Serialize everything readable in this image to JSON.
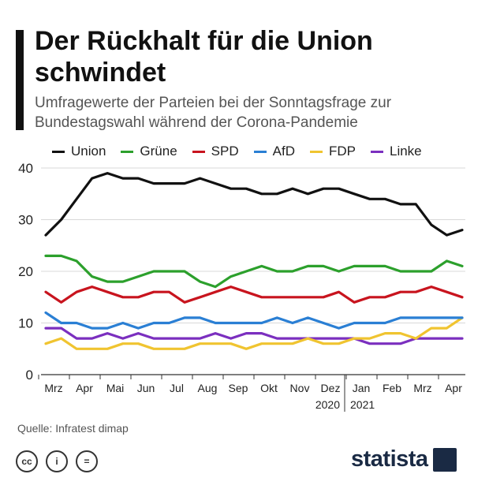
{
  "header": {
    "title": "Der Rückhalt für die Union schwindet",
    "subtitle": "Umfragewerte der Parteien bei der Sonntagsfrage zur Bundestagswahl während der Corona-Pandemie"
  },
  "chart_data": {
    "type": "line",
    "title": "Der Rückhalt für die Union schwindet",
    "subtitle": "Umfragewerte der Parteien bei der Sonntagsfrage zur Bundestagswahl während der Corona-Pandemie",
    "ylim": [
      0,
      40
    ],
    "yticks": [
      0,
      10,
      20,
      30,
      40
    ],
    "grid": true,
    "legend_position": "top",
    "x_ticks": [
      "Mrz",
      "Apr",
      "Mai",
      "Jun",
      "Jul",
      "Aug",
      "Sep",
      "Okt",
      "Nov",
      "Dez",
      "Jan",
      "Feb",
      "Mrz",
      "Apr"
    ],
    "x_year_labels": [
      "2020",
      "2021"
    ],
    "series": [
      {
        "name": "Union",
        "color": "#111111",
        "values": [
          27,
          30,
          34,
          38,
          39,
          38,
          38,
          37,
          37,
          37,
          38,
          37,
          36,
          36,
          35,
          35,
          36,
          35,
          36,
          36,
          35,
          34,
          34,
          33,
          33,
          29,
          27,
          28
        ]
      },
      {
        "name": "Grüne",
        "color": "#2ca02c",
        "values": [
          23,
          23,
          22,
          19,
          18,
          18,
          19,
          20,
          20,
          20,
          18,
          17,
          19,
          20,
          21,
          20,
          20,
          21,
          21,
          20,
          21,
          21,
          21,
          20,
          20,
          20,
          22,
          21
        ]
      },
      {
        "name": "SPD",
        "color": "#c8141e",
        "values": [
          16,
          14,
          16,
          17,
          16,
          15,
          15,
          16,
          16,
          14,
          15,
          16,
          17,
          16,
          15,
          15,
          15,
          15,
          15,
          16,
          14,
          15,
          15,
          16,
          16,
          17,
          16,
          15
        ]
      },
      {
        "name": "AfD",
        "color": "#2a7fd4",
        "values": [
          12,
          10,
          10,
          9,
          9,
          10,
          9,
          10,
          10,
          11,
          11,
          10,
          10,
          10,
          10,
          11,
          10,
          11,
          10,
          9,
          10,
          10,
          10,
          11,
          11,
          11,
          11,
          11
        ]
      },
      {
        "name": "FDP",
        "color": "#f0c430",
        "values": [
          6,
          7,
          5,
          5,
          5,
          6,
          6,
          5,
          5,
          5,
          6,
          6,
          6,
          5,
          6,
          6,
          6,
          7,
          6,
          6,
          7,
          7,
          8,
          8,
          7,
          9,
          9,
          11
        ]
      },
      {
        "name": "Linke",
        "color": "#7b2fbf",
        "values": [
          9,
          9,
          7,
          7,
          8,
          7,
          8,
          7,
          7,
          7,
          7,
          8,
          7,
          8,
          8,
          7,
          7,
          7,
          7,
          7,
          7,
          6,
          6,
          6,
          7,
          7,
          7,
          7
        ]
      }
    ]
  },
  "footer": {
    "source": "Quelle: Infratest dimap",
    "license_icons": [
      "cc-icon",
      "person-icon",
      "equals-icon"
    ],
    "license_glyphs": [
      "cc",
      "i",
      "="
    ],
    "brand": "statista"
  }
}
